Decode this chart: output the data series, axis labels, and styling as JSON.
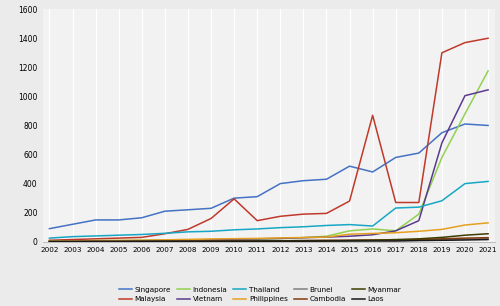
{
  "years": [
    2002,
    2003,
    2004,
    2005,
    2006,
    2007,
    2008,
    2009,
    2010,
    2011,
    2012,
    2013,
    2014,
    2015,
    2016,
    2017,
    2018,
    2019,
    2020,
    2021
  ],
  "series": {
    "Singapore": [
      90,
      120,
      150,
      150,
      165,
      210,
      220,
      230,
      300,
      310,
      400,
      420,
      430,
      520,
      480,
      580,
      610,
      750,
      810,
      800
    ],
    "Malaysia": [
      10,
      15,
      20,
      25,
      30,
      55,
      85,
      160,
      295,
      145,
      175,
      190,
      195,
      280,
      870,
      270,
      270,
      1300,
      1370,
      1400
    ],
    "Indonesia": [
      5,
      5,
      8,
      8,
      10,
      10,
      12,
      15,
      18,
      18,
      22,
      28,
      38,
      75,
      88,
      75,
      190,
      580,
      880,
      1175
    ],
    "Vietnam": [
      3,
      4,
      5,
      6,
      7,
      9,
      11,
      13,
      18,
      20,
      23,
      28,
      32,
      38,
      48,
      75,
      145,
      680,
      1005,
      1045
    ],
    "Thailand": [
      25,
      35,
      40,
      45,
      50,
      58,
      68,
      72,
      82,
      88,
      97,
      103,
      112,
      118,
      108,
      232,
      238,
      282,
      400,
      415
    ],
    "Philippines": [
      5,
      6,
      8,
      9,
      10,
      13,
      16,
      19,
      21,
      23,
      26,
      29,
      32,
      52,
      57,
      62,
      72,
      85,
      115,
      130
    ],
    "Brunei": [
      2,
      2,
      3,
      3,
      4,
      5,
      5,
      6,
      6,
      7,
      7,
      8,
      8,
      10,
      10,
      10,
      12,
      15,
      18,
      20
    ],
    "Cambodia": [
      1,
      1,
      2,
      2,
      3,
      3,
      4,
      5,
      5,
      5,
      6,
      8,
      10,
      10,
      12,
      12,
      15,
      20,
      25,
      28
    ],
    "Myanmar": [
      1,
      1,
      2,
      2,
      2,
      3,
      3,
      3,
      4,
      4,
      5,
      5,
      5,
      8,
      10,
      15,
      20,
      30,
      45,
      55
    ],
    "Laos": [
      1,
      1,
      1,
      1,
      2,
      2,
      2,
      3,
      3,
      3,
      4,
      4,
      5,
      5,
      5,
      5,
      8,
      10,
      12,
      15
    ]
  },
  "colors": {
    "Singapore": "#4472c4",
    "Malaysia": "#c0392b",
    "Indonesia": "#92d050",
    "Vietnam": "#5b3a8e",
    "Thailand": "#17a7c4",
    "Philippines": "#e6a020",
    "Brunei": "#7f7f7f",
    "Cambodia": "#843c0c",
    "Myanmar": "#3d3d00",
    "Laos": "#1a1a1a"
  },
  "ylim": [
    0,
    1600
  ],
  "yticks": [
    0,
    200,
    400,
    600,
    800,
    1000,
    1200,
    1400,
    1600
  ],
  "legend_row1": [
    "Singapore",
    "Malaysia",
    "Indonesia",
    "Vietnam",
    "Thailand"
  ],
  "legend_row2": [
    "Philippines",
    "Brunei",
    "Cambodia",
    "Myanmar",
    "Laos"
  ],
  "background_color": "#ebebeb",
  "plot_bg_color": "#f2f2f2"
}
